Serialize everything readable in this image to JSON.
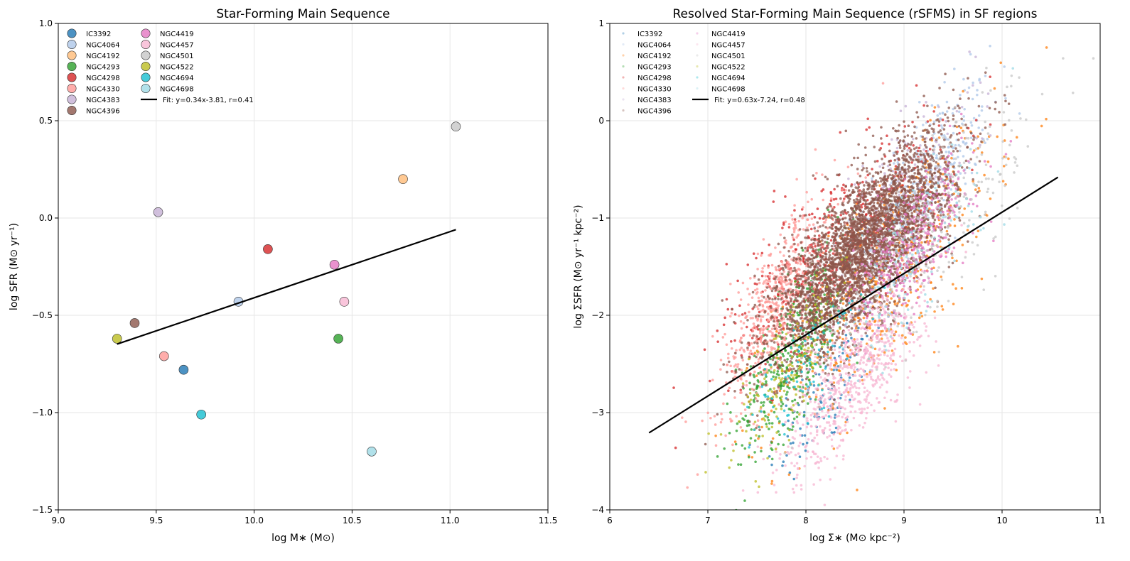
{
  "chart_data": [
    {
      "type": "scatter",
      "title": "Star-Forming Main Sequence",
      "xlabel": "log M∗ (M⊙)",
      "ylabel": "log SFR (M⊙ yr⁻¹)",
      "xlim": [
        9.0,
        11.5
      ],
      "ylim": [
        -1.5,
        1.0
      ],
      "xticks": [
        "9.0",
        "9.5",
        "10.0",
        "10.5",
        "11.0",
        "11.5"
      ],
      "yticks": [
        "−1.5",
        "−1.0",
        "−0.5",
        "0.0",
        "0.5",
        "1.0"
      ],
      "grid": true,
      "legend_position": "top-left",
      "series": [
        {
          "name": "IC3392",
          "color": "#1f77b4",
          "x": 9.64,
          "y": -0.78
        },
        {
          "name": "NGC4064",
          "color": "#aec7e8",
          "x": 9.92,
          "y": -0.43
        },
        {
          "name": "NGC4192",
          "color": "#ffbb78",
          "x": 10.76,
          "y": 0.2
        },
        {
          "name": "NGC4293",
          "color": "#2ca02c",
          "x": 10.43,
          "y": -0.62
        },
        {
          "name": "NGC4298",
          "color": "#d62728",
          "x": 10.07,
          "y": -0.16
        },
        {
          "name": "NGC4330",
          "color": "#ff9896",
          "x": 9.54,
          "y": -0.71
        },
        {
          "name": "NGC4383",
          "color": "#c5b0d5",
          "x": 9.51,
          "y": 0.03
        },
        {
          "name": "NGC4396",
          "color": "#8c564b",
          "x": 9.39,
          "y": -0.54
        },
        {
          "name": "NGC4419",
          "color": "#e377c2",
          "x": 10.41,
          "y": -0.24
        },
        {
          "name": "NGC4457",
          "color": "#f7b6d2",
          "x": 10.46,
          "y": -0.43
        },
        {
          "name": "NGC4501",
          "color": "#c7c7c7",
          "x": 11.03,
          "y": 0.47
        },
        {
          "name": "NGC4522",
          "color": "#bcbd22",
          "x": 9.3,
          "y": -0.62
        },
        {
          "name": "NGC4694",
          "color": "#17becf",
          "x": 9.73,
          "y": -1.01
        },
        {
          "name": "NGC4698",
          "color": "#9edae5",
          "x": 10.6,
          "y": -1.2
        }
      ],
      "fit": {
        "label": "Fit: y=0.34x-3.81, r=0.41",
        "slope": 0.34,
        "intercept": -3.81,
        "x_range": [
          9.3,
          11.03
        ],
        "color": "#000000"
      }
    },
    {
      "type": "scatter",
      "title": "Resolved Star-Forming Main Sequence (rSFMS) in SF regions",
      "xlabel": "log Σ∗ (M⊙ kpc⁻²)",
      "ylabel": "log ΣSFR (M⊙ yr⁻¹ kpc⁻²)",
      "xlim": [
        6,
        11
      ],
      "ylim": [
        -4,
        1
      ],
      "xticks": [
        "6",
        "7",
        "8",
        "9",
        "10",
        "11"
      ],
      "yticks": [
        "−4",
        "−3",
        "−2",
        "−1",
        "0",
        "1"
      ],
      "grid": true,
      "legend_position": "top-left",
      "series": [
        {
          "name": "IC3392",
          "color": "#1f77b4",
          "center": [
            8.2,
            -2.8
          ],
          "spread": [
            0.3,
            0.45
          ],
          "count": 120
        },
        {
          "name": "NGC4064",
          "color": "#aec7e8",
          "center": [
            9.2,
            -0.6
          ],
          "spread": [
            0.35,
            0.5
          ],
          "count": 300
        },
        {
          "name": "NGC4192",
          "color": "#ff7f0e",
          "center": [
            8.8,
            -1.6
          ],
          "spread": [
            0.55,
            0.75
          ],
          "count": 600
        },
        {
          "name": "NGC4293",
          "color": "#2ca02c",
          "center": [
            7.9,
            -2.3
          ],
          "spread": [
            0.3,
            0.55
          ],
          "count": 450
        },
        {
          "name": "NGC4298",
          "color": "#d62728",
          "center": [
            8.3,
            -1.3
          ],
          "spread": [
            0.55,
            0.6
          ],
          "count": 500
        },
        {
          "name": "NGC4330",
          "color": "#ff9896",
          "center": [
            7.7,
            -1.9
          ],
          "spread": [
            0.3,
            0.55
          ],
          "count": 600
        },
        {
          "name": "NGC4383",
          "color": "#c5b0d5",
          "center": [
            8.9,
            -0.9
          ],
          "spread": [
            0.4,
            0.55
          ],
          "count": 250
        },
        {
          "name": "NGC4396",
          "color": "#8c564b",
          "center": [
            8.6,
            -1.3
          ],
          "spread": [
            0.45,
            0.55
          ],
          "count": 3500
        },
        {
          "name": "NGC4419",
          "color": "#e377c2",
          "center": [
            9.1,
            -1.3
          ],
          "spread": [
            0.3,
            0.45
          ],
          "count": 400
        },
        {
          "name": "NGC4457",
          "color": "#f7b6d2",
          "center": [
            8.5,
            -2.6
          ],
          "spread": [
            0.35,
            0.5
          ],
          "count": 700
        },
        {
          "name": "NGC4501",
          "color": "#c7c7c7",
          "center": [
            9.4,
            -1.0
          ],
          "spread": [
            0.5,
            0.7
          ],
          "count": 250
        },
        {
          "name": "NGC4522",
          "color": "#bcbd22",
          "center": [
            7.8,
            -2.6
          ],
          "spread": [
            0.3,
            0.5
          ],
          "count": 150
        },
        {
          "name": "NGC4694",
          "color": "#17becf",
          "center": [
            8.0,
            -2.5
          ],
          "spread": [
            0.3,
            0.4
          ],
          "count": 80
        },
        {
          "name": "NGC4698",
          "color": "#9edae5",
          "center": [
            9.0,
            -1.5
          ],
          "spread": [
            0.4,
            0.55
          ],
          "count": 150
        }
      ],
      "fit": {
        "label": "Fit: y=0.63x-7.24, r=0.48",
        "slope": 0.63,
        "intercept": -7.24,
        "x_range": [
          6.4,
          10.57
        ],
        "color": "#000000"
      }
    }
  ]
}
